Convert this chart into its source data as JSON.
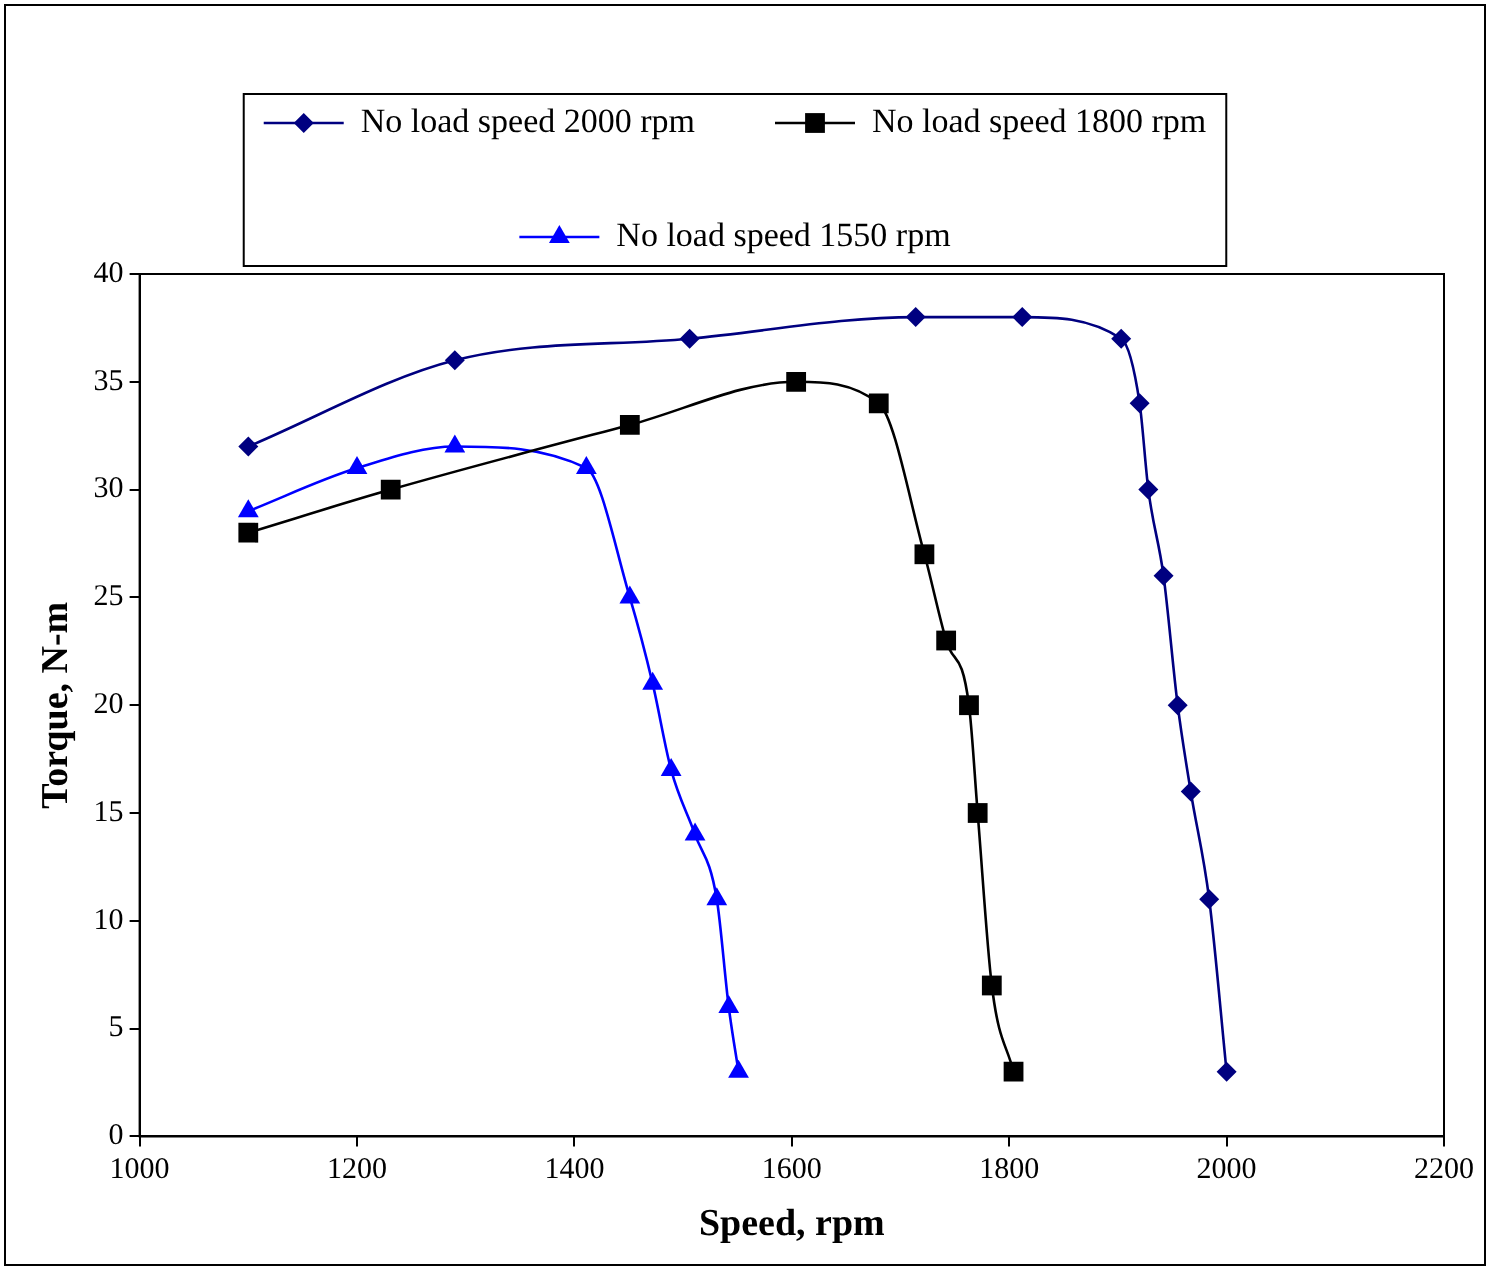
{
  "chart_data": {
    "type": "line",
    "xlabel": "Speed, rpm",
    "ylabel": "Torque, N-m",
    "xlim": [
      1000,
      2200
    ],
    "xticks": [
      1000,
      1200,
      1400,
      1600,
      1800,
      2000,
      2200
    ],
    "ylim": [
      0,
      40
    ],
    "yticks": [
      0,
      5,
      10,
      15,
      20,
      25,
      30,
      35,
      40
    ],
    "grid": false,
    "legend": "top",
    "line_style": "solid",
    "series": [
      {
        "name": "No load speed 2000 rpm",
        "color": "#000080",
        "marker": "diamond",
        "x": [
          1100,
          1290,
          1506,
          1714,
          1812,
          1903,
          1920,
          1928,
          1942,
          1955,
          1967,
          1984,
          2000
        ],
        "values": [
          32,
          36,
          37,
          38,
          38,
          37,
          34,
          30,
          26,
          20,
          16,
          11,
          3
        ]
      },
      {
        "name": "No load speed 1800 rpm",
        "color": "#000000",
        "marker": "square",
        "x": [
          1100,
          1231,
          1451,
          1604,
          1680,
          1722,
          1742,
          1763,
          1771,
          1784,
          1804
        ],
        "values": [
          28,
          30,
          33,
          35,
          34,
          27,
          23,
          20,
          15,
          7,
          3
        ]
      },
      {
        "name": "No load speed 1550 rpm",
        "color": "#0000ff",
        "marker": "triangle",
        "x": [
          1100,
          1200,
          1290,
          1411,
          1451,
          1472,
          1489,
          1511,
          1531,
          1542,
          1551
        ],
        "values": [
          29,
          31,
          32,
          31,
          25,
          21,
          17,
          14,
          11,
          6,
          3
        ]
      }
    ]
  }
}
